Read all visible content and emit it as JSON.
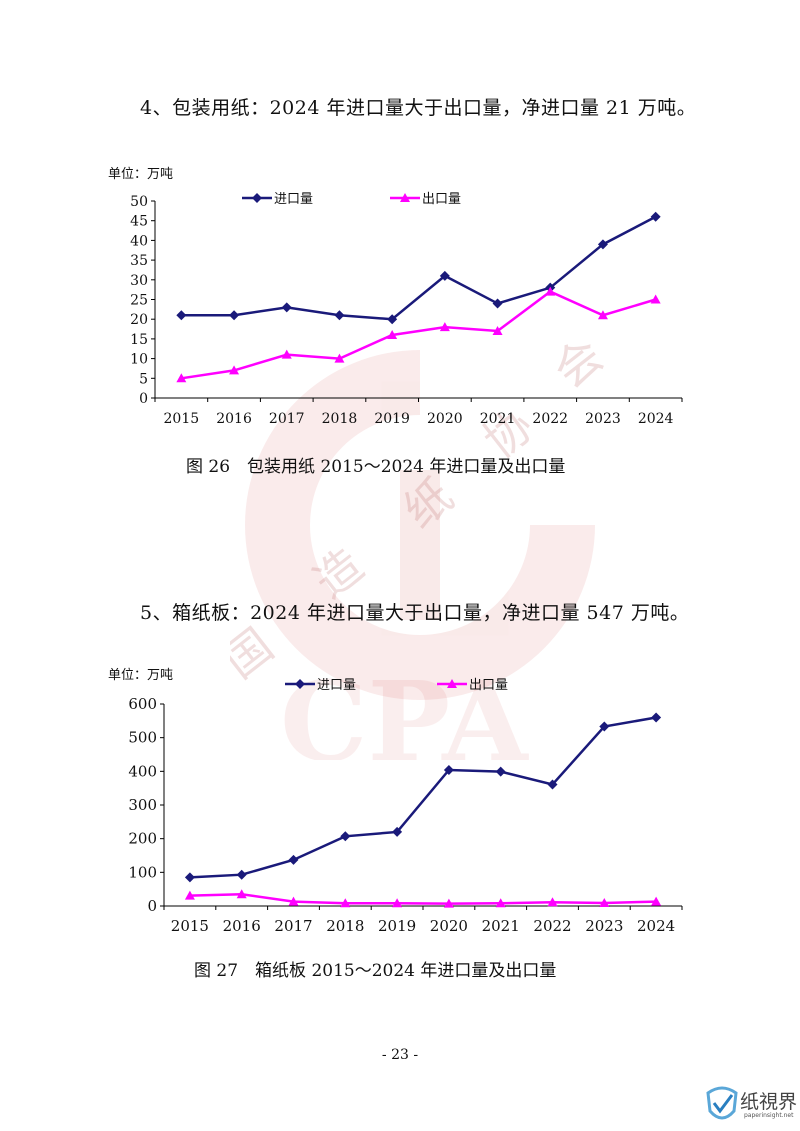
{
  "page": {
    "heading_1": "4、包装用纸：2024 年进口量大于出口量，净进口量 21 万吨。",
    "heading_2": "5、箱纸板：2024 年进口量大于出口量，净进口量 547 万吨。",
    "page_number": "- 23 -",
    "watermark_text": [
      "中",
      "国",
      "造",
      "纸",
      "协",
      "会",
      "CPA"
    ],
    "logo_text": "纸視界",
    "logo_sub": "paperinsight.net"
  },
  "chart_data": [
    {
      "type": "line",
      "unit_label": "单位：万吨",
      "caption": "图 26　包装用纸 2015～2024 年进口量及出口量",
      "x": [
        "2015",
        "2016",
        "2017",
        "2018",
        "2019",
        "2020",
        "2021",
        "2022",
        "2023",
        "2024"
      ],
      "ylim": [
        0,
        50
      ],
      "yticks": [
        "0",
        "5",
        "10",
        "15",
        "20",
        "25",
        "30",
        "35",
        "40",
        "45",
        "50"
      ],
      "grid": false,
      "legend": "top",
      "series": [
        {
          "name": "进口量",
          "color": "#1a1a7a",
          "marker": "diamond",
          "values": [
            21,
            21,
            23,
            21,
            20,
            31,
            24,
            28,
            39,
            46
          ]
        },
        {
          "name": "出口量",
          "color": "#ff00ff",
          "marker": "triangle",
          "values": [
            5,
            7,
            11,
            10,
            16,
            18,
            17,
            27,
            21,
            25
          ]
        }
      ]
    },
    {
      "type": "line",
      "unit_label": "单位：万吨",
      "caption": "图 27　箱纸板 2015～2024 年进口量及出口量",
      "x": [
        "2015",
        "2016",
        "2017",
        "2018",
        "2019",
        "2020",
        "2021",
        "2022",
        "2023",
        "2024"
      ],
      "ylim": [
        0,
        600
      ],
      "yticks": [
        "0",
        "100",
        "200",
        "300",
        "400",
        "500",
        "600"
      ],
      "grid": false,
      "legend": "top",
      "series": [
        {
          "name": "进口量",
          "color": "#1a1a7a",
          "marker": "diamond",
          "values": [
            85,
            93,
            137,
            207,
            220,
            404,
            399,
            361,
            533,
            560
          ]
        },
        {
          "name": "出口量",
          "color": "#ff00ff",
          "marker": "triangle",
          "values": [
            31,
            35,
            13,
            8,
            8,
            7,
            8,
            11,
            9,
            13
          ]
        }
      ]
    }
  ]
}
